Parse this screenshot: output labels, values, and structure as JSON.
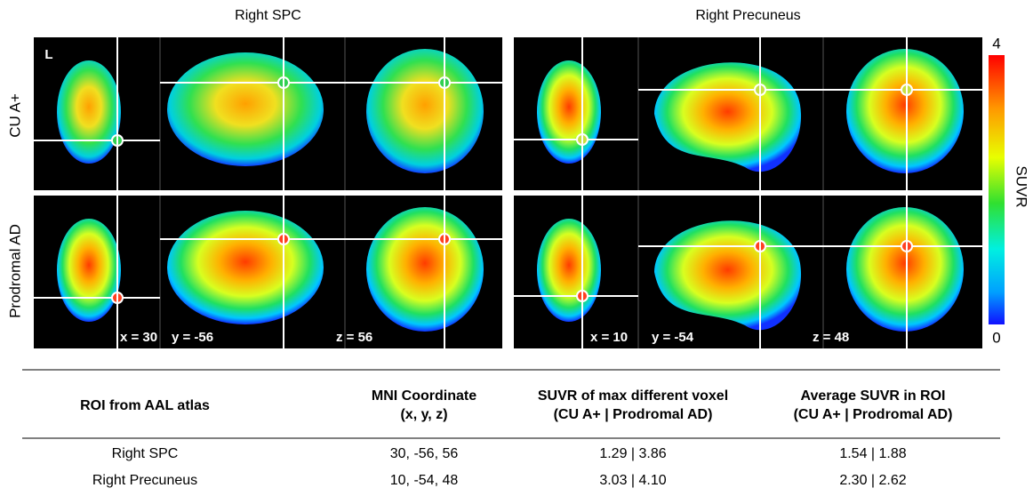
{
  "panels": [
    {
      "title": "Right SPC",
      "coords": [
        "x = 30",
        "y = -56",
        "z = 56"
      ]
    },
    {
      "title": "Right Precuneus",
      "coords": [
        "x = 10",
        "y = -54",
        "z = 48"
      ]
    }
  ],
  "row_labels": [
    "CU A+",
    "Prodromal AD"
  ],
  "orientation_label": "L",
  "colorbar": {
    "label": "SUVR",
    "max": 4,
    "min": 0
  },
  "table": {
    "headers": [
      [
        "ROI from AAL atlas"
      ],
      [
        "MNI Coordinate",
        "(x, y, z)"
      ],
      [
        "SUVR of max different voxel",
        "(CU A+ | Prodromal AD)"
      ],
      [
        "Average SUVR in ROI",
        "(CU A+ | Prodromal AD)"
      ]
    ],
    "rows": [
      [
        "Right SPC",
        "30, -56, 56",
        "1.29 | 3.86",
        "1.54 | 1.88"
      ],
      [
        "Right Precuneus",
        "10, -54, 48",
        "3.03 | 4.10",
        "2.30 | 2.62"
      ]
    ]
  }
}
